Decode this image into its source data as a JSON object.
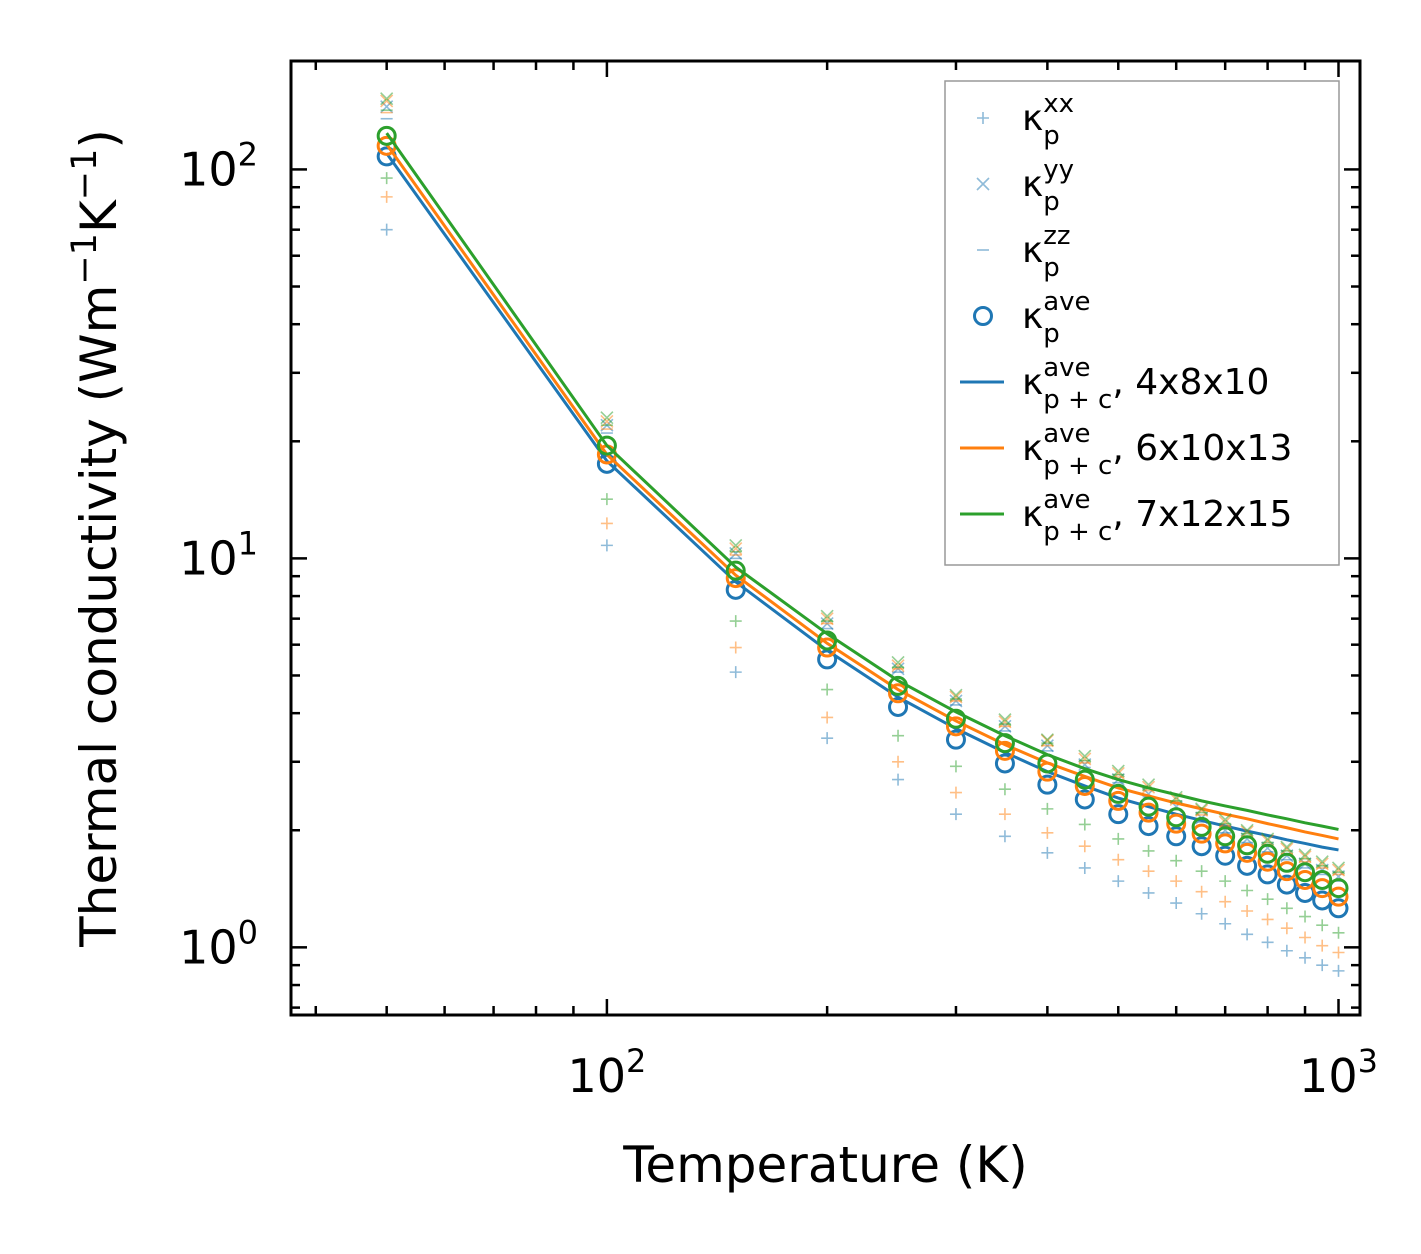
{
  "chart_data": {
    "type": "scatter",
    "xlabel": "Temperature (K)",
    "ylabel": {
      "base": "Thermal conductivity (Wm",
      "sup1": "−1",
      "mid": "K",
      "sup2": "−1",
      "end": ")"
    },
    "xscale": "log",
    "yscale": "log",
    "xlim": [
      37,
      1070
    ],
    "ylim": [
      0.67,
      190
    ],
    "x_major_ticks": [
      {
        "value": 100,
        "base": "10",
        "exp": "2"
      },
      {
        "value": 1000,
        "base": "10",
        "exp": "3"
      }
    ],
    "y_major_ticks": [
      {
        "value": 1,
        "base": "10",
        "exp": "0"
      },
      {
        "value": 10,
        "base": "10",
        "exp": "1"
      },
      {
        "value": 100,
        "base": "10",
        "exp": "2"
      }
    ],
    "legend_position": "top-right",
    "colors": {
      "blue": "#1f77b4",
      "orange": "#ff7f0e",
      "green": "#2ca02c"
    },
    "temperatures": [
      50,
      100,
      150,
      200,
      250,
      300,
      350,
      400,
      450,
      500,
      550,
      600,
      650,
      700,
      750,
      800,
      850,
      900,
      950,
      1000
    ],
    "legend": [
      {
        "key": "xx",
        "marker": "plus",
        "base": "κ",
        "sup": "xx",
        "sub": "p",
        "suffix": ""
      },
      {
        "key": "yy",
        "marker": "cross",
        "base": "κ",
        "sup": "yy",
        "sub": "p",
        "suffix": ""
      },
      {
        "key": "zz",
        "marker": "dash",
        "base": "κ",
        "sup": "zz",
        "sub": "p",
        "suffix": ""
      },
      {
        "key": "ave",
        "marker": "circle",
        "base": "κ",
        "sup": "ave",
        "sub": "p",
        "suffix": ""
      },
      {
        "key": "line1",
        "marker": "line",
        "color": "#1f77b4",
        "base": "κ",
        "sup": "ave",
        "sub": "p + c",
        "suffix": ", 4x8x10"
      },
      {
        "key": "line2",
        "marker": "line",
        "color": "#ff7f0e",
        "base": "κ",
        "sup": "ave",
        "sub": "p + c",
        "suffix": ", 6x10x13"
      },
      {
        "key": "line3",
        "marker": "line",
        "color": "#2ca02c",
        "base": "κ",
        "sup": "ave",
        "sub": "p + c",
        "suffix": ", 7x12x15"
      }
    ],
    "series": [
      {
        "name": "4x8x10",
        "color": "#1f77b4",
        "xx": [
          70,
          10.8,
          5.1,
          3.45,
          2.7,
          2.2,
          1.93,
          1.75,
          1.6,
          1.48,
          1.38,
          1.3,
          1.22,
          1.15,
          1.08,
          1.03,
          0.98,
          0.94,
          0.9,
          0.87
        ],
        "yy": [
          145,
          22,
          10.3,
          6.8,
          5.2,
          4.3,
          3.7,
          3.3,
          2.95,
          2.7,
          2.48,
          2.3,
          2.15,
          2.0,
          1.9,
          1.8,
          1.72,
          1.64,
          1.58,
          1.52
        ],
        "zz": [
          135,
          21,
          10.0,
          6.6,
          5.1,
          4.2,
          3.6,
          3.2,
          2.9,
          2.65,
          2.44,
          2.26,
          2.1,
          1.97,
          1.86,
          1.76,
          1.68,
          1.6,
          1.54,
          1.48
        ],
        "ave": [
          108,
          17.5,
          8.3,
          5.5,
          4.15,
          3.42,
          2.97,
          2.62,
          2.4,
          2.2,
          2.05,
          1.93,
          1.82,
          1.72,
          1.62,
          1.54,
          1.45,
          1.38,
          1.32,
          1.26
        ],
        "line": [
          110,
          17.8,
          8.7,
          5.8,
          4.4,
          3.65,
          3.17,
          2.83,
          2.6,
          2.42,
          2.3,
          2.2,
          2.12,
          2.05,
          1.99,
          1.94,
          1.89,
          1.85,
          1.81,
          1.78
        ]
      },
      {
        "name": "6x10x13",
        "color": "#ff7f0e",
        "xx": [
          85,
          12.3,
          5.9,
          3.9,
          3.0,
          2.5,
          2.2,
          1.97,
          1.82,
          1.68,
          1.57,
          1.48,
          1.39,
          1.31,
          1.24,
          1.18,
          1.12,
          1.06,
          1.01,
          0.97
        ],
        "yy": [
          150,
          22.5,
          10.6,
          7.0,
          5.3,
          4.4,
          3.8,
          3.4,
          3.05,
          2.8,
          2.58,
          2.4,
          2.25,
          2.1,
          1.98,
          1.88,
          1.79,
          1.71,
          1.64,
          1.58
        ],
        "zz": [
          140,
          21.5,
          10.2,
          6.8,
          5.2,
          4.3,
          3.7,
          3.3,
          2.98,
          2.74,
          2.53,
          2.35,
          2.19,
          2.05,
          1.93,
          1.83,
          1.74,
          1.66,
          1.6,
          1.54
        ],
        "ave": [
          115,
          18.5,
          8.9,
          5.9,
          4.5,
          3.7,
          3.2,
          2.83,
          2.6,
          2.38,
          2.22,
          2.08,
          1.96,
          1.85,
          1.75,
          1.66,
          1.57,
          1.49,
          1.42,
          1.35
        ],
        "line": [
          116,
          18.5,
          9.05,
          6.05,
          4.6,
          3.82,
          3.32,
          2.98,
          2.75,
          2.57,
          2.45,
          2.35,
          2.27,
          2.2,
          2.14,
          2.08,
          2.03,
          1.98,
          1.94,
          1.9
        ]
      },
      {
        "name": "7x12x15",
        "color": "#2ca02c",
        "xx": [
          95,
          14.2,
          6.9,
          4.6,
          3.5,
          2.92,
          2.55,
          2.27,
          2.07,
          1.9,
          1.77,
          1.67,
          1.57,
          1.48,
          1.4,
          1.33,
          1.26,
          1.2,
          1.14,
          1.09
        ],
        "yy": [
          152,
          23,
          10.8,
          7.1,
          5.4,
          4.45,
          3.85,
          3.42,
          3.1,
          2.84,
          2.62,
          2.43,
          2.27,
          2.13,
          2.0,
          1.9,
          1.81,
          1.73,
          1.66,
          1.6
        ],
        "zz": [
          142,
          22,
          10.4,
          6.9,
          5.25,
          4.35,
          3.75,
          3.35,
          3.02,
          2.78,
          2.56,
          2.38,
          2.22,
          2.08,
          1.96,
          1.86,
          1.77,
          1.69,
          1.62,
          1.56
        ],
        "ave": [
          122,
          19.5,
          9.3,
          6.15,
          4.7,
          3.87,
          3.35,
          2.97,
          2.7,
          2.48,
          2.3,
          2.16,
          2.04,
          1.93,
          1.83,
          1.74,
          1.65,
          1.56,
          1.49,
          1.42
        ],
        "line": [
          124,
          19.5,
          9.5,
          6.4,
          4.85,
          4.03,
          3.5,
          3.13,
          2.88,
          2.7,
          2.57,
          2.47,
          2.38,
          2.31,
          2.25,
          2.19,
          2.14,
          2.09,
          2.05,
          2.01
        ]
      }
    ]
  }
}
